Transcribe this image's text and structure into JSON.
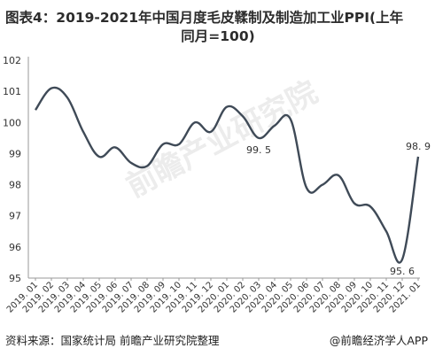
{
  "title_line1": "图表4：2019-2021年中国月度毛皮鞣制及制造加工业PPI(上年",
  "title_line2": "同月=100)",
  "source": "资料来源：国家统计局 前瞻产业研究院整理",
  "brand": "@前瞻经济学人APP",
  "watermark": "前瞻产业研究院",
  "colors": {
    "line": "#3f4a57",
    "axis": "#999999",
    "grid": "#dddddd",
    "text": "#333333"
  },
  "chart_data": {
    "type": "line",
    "title": "图表4：2019-2021年中国月度毛皮鞣制及制造加工业PPI(上年同月=100)",
    "ylim": [
      95,
      102
    ],
    "yticks": [
      95,
      96,
      97,
      98,
      99,
      100,
      101,
      102
    ],
    "grid": false,
    "tick_labels": [
      "2019. 01",
      "2019. 02",
      "2019. 03",
      "2019. 04",
      "2019. 05",
      "2019. 06",
      "2019. 07",
      "2019. 08",
      "2019. 09",
      "2019. 10",
      "2019. 11",
      "2019. 12",
      "2020. 01",
      "2020. 02",
      "2020. 03",
      "2020. 04",
      "2020. 05",
      "2020. 06",
      "2020. 07",
      "2020. 08",
      "2020. 09",
      "2020. 10",
      "2020. 11",
      "2020. 12",
      "2021. 01"
    ],
    "x": [
      "2019.01",
      "2019.02",
      "2019.03",
      "2019.04",
      "2019.05",
      "2019.06",
      "2019.07",
      "2019.08",
      "2019.09",
      "2019.10",
      "2019.11",
      "2019.12",
      "2020.01",
      "2020.02",
      "2020.03",
      "2020.04",
      "2020.05",
      "2020.06",
      "2020.07",
      "2020.08",
      "2020.09",
      "2020.10",
      "2020.11",
      "2020.12",
      "2021.01"
    ],
    "values": [
      100.4,
      101.1,
      100.8,
      99.7,
      98.9,
      99.2,
      98.7,
      98.6,
      99.3,
      99.3,
      100.0,
      99.7,
      100.5,
      100.2,
      99.5,
      99.9,
      100.1,
      97.9,
      98.0,
      98.3,
      97.4,
      97.3,
      96.5,
      95.6,
      98.9
    ],
    "annotations": [
      {
        "index": 14,
        "text": "99. 5",
        "position": "below"
      },
      {
        "index": 23,
        "text": "95. 6",
        "position": "below"
      },
      {
        "index": 24,
        "text": "98. 9",
        "position": "above"
      }
    ]
  }
}
